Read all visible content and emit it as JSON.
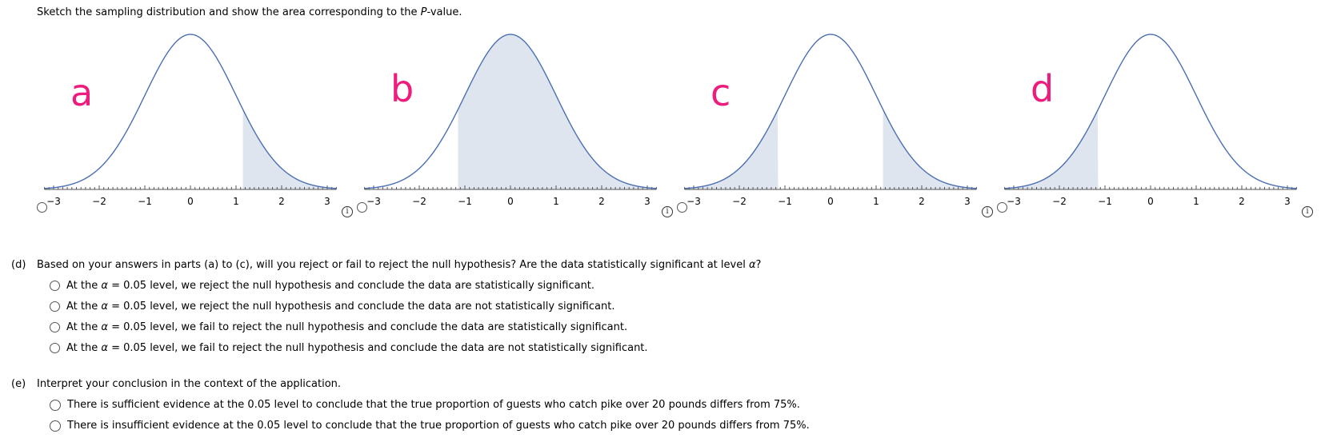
{
  "instruction": {
    "prefix": "Sketch the sampling distribution and show the area corresponding to the ",
    "p_italic": "P",
    "suffix": "-value."
  },
  "graphs": [
    {
      "letter": "a",
      "shaded": [
        [
          1.15,
          3.2
        ]
      ],
      "ticks": [
        "−3",
        "−2",
        "−1",
        "0",
        "1",
        "2",
        "3"
      ]
    },
    {
      "letter": "b",
      "shaded": [
        [
          -1.15,
          3.2
        ]
      ],
      "ticks": [
        "−3",
        "−2",
        "−1",
        "0",
        "1",
        "2",
        "3"
      ]
    },
    {
      "letter": "c",
      "shaded": [
        [
          -3.2,
          -1.15
        ],
        [
          1.15,
          3.2
        ]
      ],
      "ticks": [
        "−3",
        "−2",
        "−1",
        "0",
        "1",
        "2",
        "3"
      ]
    },
    {
      "letter": "d",
      "shaded": [
        [
          -3.2,
          -1.15
        ]
      ],
      "ticks": [
        "−3",
        "−2",
        "−1",
        "0",
        "1",
        "2",
        "3"
      ]
    }
  ],
  "colors": {
    "curve": "#4a6fb5",
    "shade": "#dfe5ef",
    "letter": "#ee1c7c",
    "axis": "#555555"
  },
  "info_icon_glyph": "i",
  "part_d": {
    "label": "(d)",
    "question": "Based on your answers in parts (a) to (c), will you reject or fail to reject the null hypothesis? Are the data statistically significant at level ",
    "alpha": "α",
    "question_end": "?",
    "options": [
      {
        "pre": "At the ",
        "alpha": "α",
        "post": " = 0.05 level, we reject the null hypothesis and conclude the data are statistically significant."
      },
      {
        "pre": "At the ",
        "alpha": "α",
        "post": " = 0.05 level, we reject the null hypothesis and conclude the data are not statistically significant."
      },
      {
        "pre": "At the ",
        "alpha": "α",
        "post": " = 0.05 level, we fail to reject the null hypothesis and conclude the data are statistically significant."
      },
      {
        "pre": "At the ",
        "alpha": "α",
        "post": " = 0.05 level, we fail to reject the null hypothesis and conclude the data are not statistically significant."
      }
    ]
  },
  "part_e": {
    "label": "(e)",
    "question": "Interpret your conclusion in the context of the application.",
    "options": [
      {
        "text": "There is sufficient evidence at the 0.05 level to conclude that the true proportion of guests who catch pike over 20 pounds differs from 75%."
      },
      {
        "text": "There is insufficient evidence at the 0.05 level to conclude that the true proportion of guests who catch pike over 20 pounds differs from 75%."
      }
    ]
  }
}
